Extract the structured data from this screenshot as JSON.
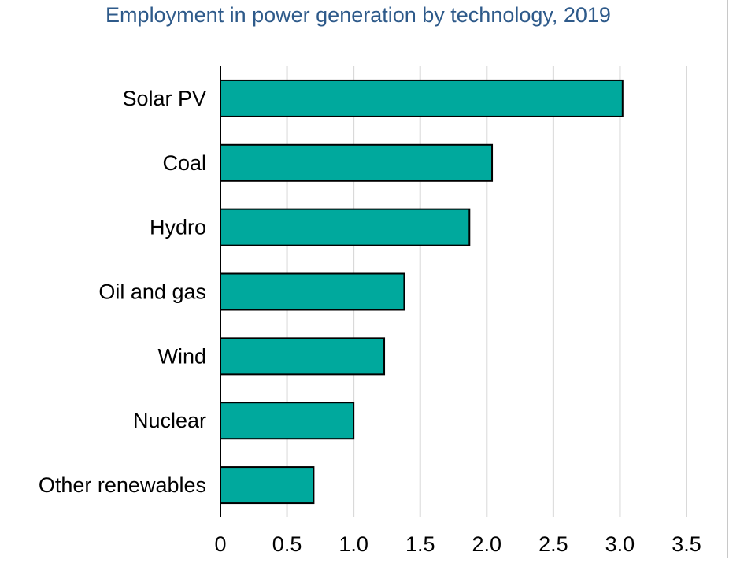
{
  "chart_data": {
    "type": "bar",
    "orientation": "horizontal",
    "title": "Employment in power generation by technology, 2019",
    "categories": [
      "Solar PV",
      "Coal",
      "Hydro",
      "Oil and gas",
      "Wind",
      "Nuclear",
      "Other renewables"
    ],
    "values": [
      3.02,
      2.04,
      1.87,
      1.38,
      1.23,
      1.0,
      0.7
    ],
    "xlim": [
      0,
      3.5
    ],
    "xticks": [
      "0",
      "0.5",
      "1.0",
      "1.5",
      "2.0",
      "2.5",
      "3.0",
      "3.5"
    ],
    "xlabel": "",
    "ylabel": "",
    "grid": "vertical",
    "bar_color": "#00a99d"
  }
}
